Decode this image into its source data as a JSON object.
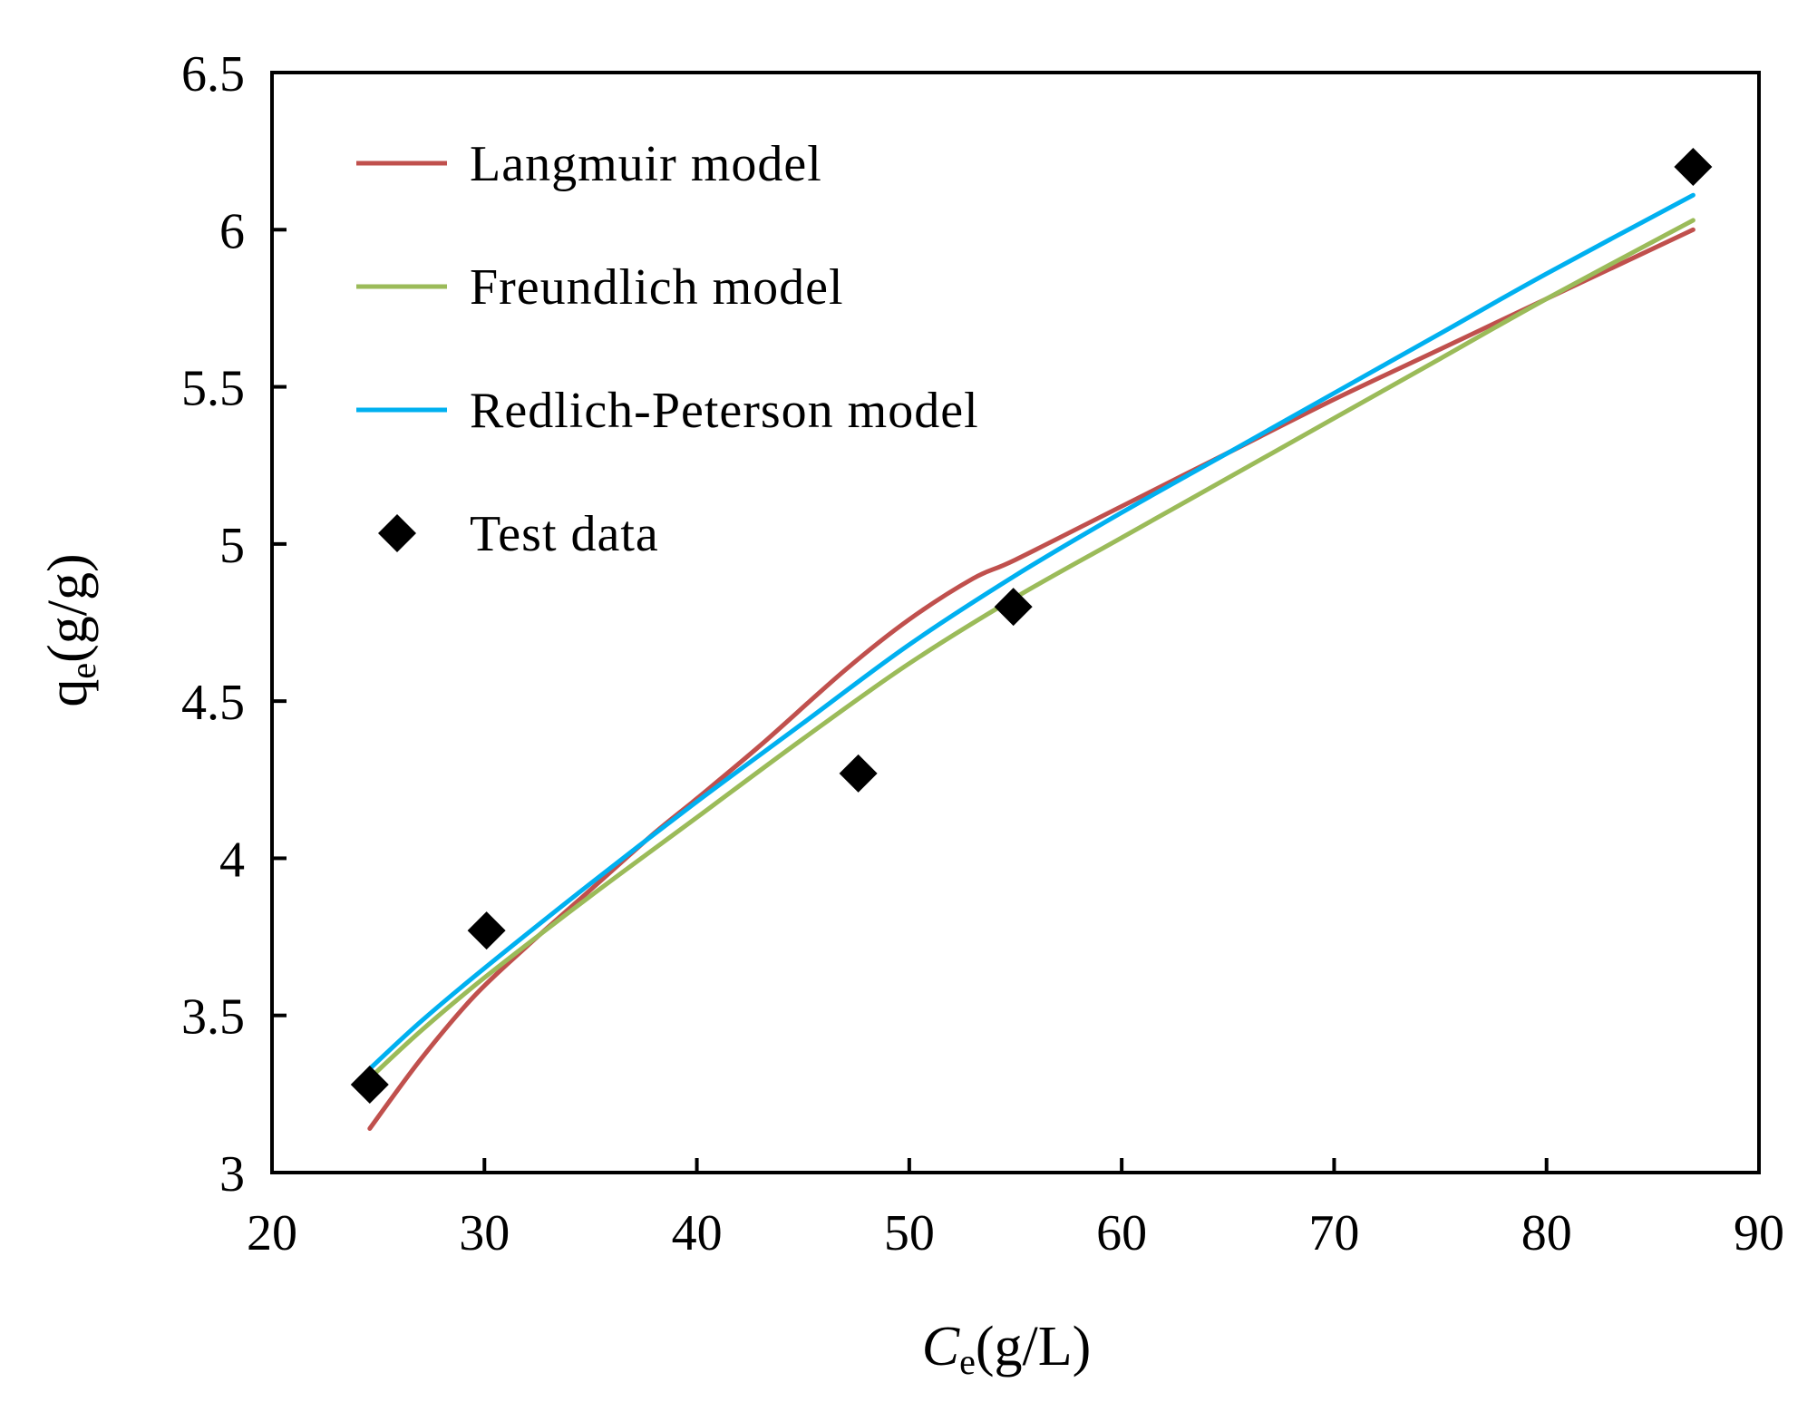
{
  "chart_data": {
    "type": "line",
    "xlabel": {
      "main": "C",
      "sub": "e",
      "unit": "(g/L)"
    },
    "ylabel": {
      "main": "q",
      "sub": "e",
      "unit": "(g/g)"
    },
    "xlim": [
      20,
      90
    ],
    "ylim": [
      3,
      6.5
    ],
    "xticks": [
      20,
      30,
      40,
      50,
      60,
      70,
      80,
      90
    ],
    "yticks": [
      3,
      3.5,
      4,
      4.5,
      5,
      5.5,
      6,
      6.5
    ],
    "xtick_labels": [
      "20",
      "30",
      "40",
      "50",
      "60",
      "70",
      "80",
      "90"
    ],
    "ytick_labels": [
      "3",
      "3.5",
      "4",
      "4.5",
      "5",
      "5.5",
      "6",
      "6.5"
    ],
    "grid": false,
    "legend_position": "top-left",
    "series": [
      {
        "name": "Langmuir model",
        "kind": "line",
        "color": "#c0504d",
        "x": [
          24.6,
          27.0,
          29.5,
          32.0,
          35.0,
          38.0,
          40.0,
          43.0,
          47.0,
          50.0,
          53.0,
          55.0,
          60.0,
          65.0,
          70.0,
          75.0,
          80.0,
          86.9
        ],
        "y": [
          3.14,
          3.36,
          3.56,
          3.72,
          3.9,
          4.08,
          4.19,
          4.36,
          4.6,
          4.76,
          4.89,
          4.95,
          5.12,
          5.29,
          5.46,
          5.62,
          5.78,
          6.0
        ]
      },
      {
        "name": "Freundlich model",
        "kind": "line",
        "color": "#9bbb59",
        "x": [
          24.6,
          27.0,
          30.0,
          35.0,
          40.0,
          45.0,
          50.0,
          55.0,
          60.0,
          65.0,
          70.0,
          75.0,
          80.0,
          86.9
        ],
        "y": [
          3.3,
          3.45,
          3.62,
          3.88,
          4.13,
          4.38,
          4.62,
          4.83,
          5.02,
          5.21,
          5.4,
          5.59,
          5.78,
          6.03
        ]
      },
      {
        "name": "Redlich-Peterson model",
        "kind": "line",
        "color": "#00b0f0",
        "x": [
          24.6,
          27.0,
          30.0,
          35.0,
          40.0,
          45.0,
          50.0,
          55.0,
          60.0,
          65.0,
          70.0,
          75.0,
          80.0,
          86.9
        ],
        "y": [
          3.33,
          3.48,
          3.65,
          3.92,
          4.18,
          4.43,
          4.68,
          4.9,
          5.1,
          5.29,
          5.48,
          5.67,
          5.86,
          6.11
        ]
      },
      {
        "name": "Test data",
        "kind": "scatter",
        "marker": "diamond",
        "color": "#000000",
        "x": [
          24.6,
          30.1,
          47.6,
          54.9,
          86.9
        ],
        "y": [
          3.28,
          3.77,
          4.27,
          4.8,
          6.2
        ]
      }
    ]
  }
}
